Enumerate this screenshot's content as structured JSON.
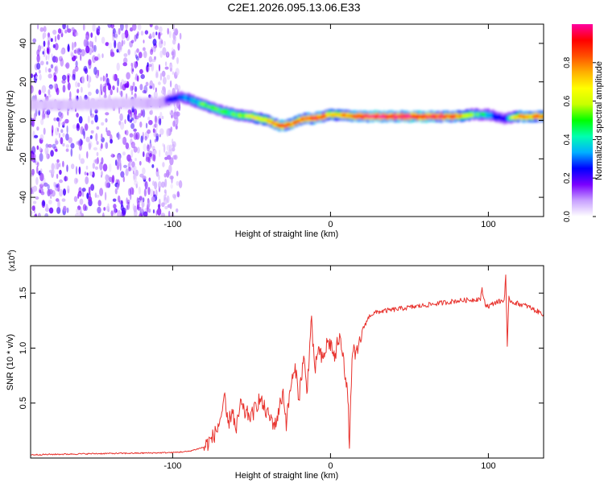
{
  "title": "C2E1.2026.095.13.06.E33",
  "chart_data": [
    {
      "type": "heatmap",
      "xlabel": "Height of straight line (km)",
      "ylabel": "Frequency (Hz)",
      "xlim": [
        -190,
        135
      ],
      "ylim": [
        -50,
        50
      ],
      "x_ticks": [
        -100,
        0,
        100
      ],
      "y_ticks": [
        -40,
        -20,
        0,
        20,
        40
      ],
      "colorbar": {
        "label": "Normalized spectral amplitude",
        "range": [
          0,
          1
        ],
        "ticks": [
          0.0,
          0.2,
          0.4,
          0.6,
          0.8
        ],
        "colors": [
          "#ffffff",
          "#c8a0ff",
          "#7a00ff",
          "#0000ff",
          "#00b0ff",
          "#00ffb0",
          "#00ff00",
          "#c8ff00",
          "#ffff00",
          "#ffb000",
          "#ff5000",
          "#ff0000",
          "#ff00a0"
        ]
      },
      "ridge": {
        "x": [
          -190,
          -160,
          -130,
          -110,
          -100,
          -95,
          -90,
          -80,
          -70,
          -60,
          -50,
          -40,
          -35,
          -30,
          -25,
          -20,
          -15,
          -10,
          -5,
          0,
          20,
          40,
          60,
          80,
          90,
          100,
          110,
          120,
          135
        ],
        "y": [
          8,
          8,
          9,
          9,
          11,
          12,
          11,
          8,
          5,
          3,
          2,
          0,
          -2,
          -3,
          -2,
          0,
          1,
          1,
          2,
          3,
          2,
          2,
          2,
          2,
          3,
          3,
          1,
          2,
          2
        ],
        "amplitude": [
          0.15,
          0.15,
          0.15,
          0.2,
          0.3,
          0.35,
          0.45,
          0.5,
          0.5,
          0.55,
          0.6,
          0.7,
          0.85,
          0.9,
          0.85,
          0.8,
          0.85,
          0.9,
          0.85,
          0.7,
          0.9,
          0.95,
          0.95,
          0.85,
          0.5,
          0.45,
          0.3,
          0.8,
          0.8
        ]
      }
    },
    {
      "type": "line",
      "ylabel": "SNR (10 * v/v)",
      "xlabel": "Height of straight line (km)",
      "y_multiplier": "(x10",
      "y_multiplier_exp": "4",
      "y_multiplier_close": ")",
      "xlim": [
        -190,
        135
      ],
      "ylim": [
        0,
        17500
      ],
      "x_ticks": [
        -100,
        0,
        100
      ],
      "y_ticks": [
        0.5,
        1.0,
        1.5
      ],
      "color": "#e8332e",
      "series": [
        {
          "name": "SNR",
          "x": [
            -190,
            -150,
            -120,
            -100,
            -90,
            -80,
            -75,
            -72,
            -70,
            -67,
            -65,
            -62,
            -60,
            -57,
            -55,
            -50,
            -45,
            -40,
            -35,
            -30,
            -28,
            -25,
            -22,
            -20,
            -17,
            -15,
            -12,
            -10,
            -8,
            -5,
            -2,
            0,
            3,
            5,
            8,
            10,
            11,
            12,
            14,
            16,
            20,
            22,
            25,
            30,
            40,
            50,
            60,
            70,
            80,
            90,
            95,
            96,
            98,
            100,
            105,
            110,
            111,
            112,
            113,
            115,
            120,
            125,
            130,
            135
          ],
          "y": [
            300,
            400,
            450,
            500,
            600,
            1000,
            1800,
            2500,
            3500,
            5200,
            3000,
            4500,
            2200,
            5000,
            4200,
            3800,
            5400,
            4000,
            3000,
            6000,
            3200,
            6800,
            8000,
            5500,
            9200,
            6000,
            12800,
            7500,
            10000,
            8800,
            10500,
            10400,
            9000,
            11000,
            9800,
            6500,
            5500,
            1200,
            10200,
            9000,
            11500,
            12200,
            13000,
            13300,
            13500,
            13700,
            13900,
            14100,
            14300,
            14400,
            14500,
            15300,
            14000,
            13800,
            14200,
            14300,
            16700,
            10000,
            14500,
            14200,
            14000,
            13800,
            13400,
            13100
          ]
        }
      ]
    }
  ]
}
